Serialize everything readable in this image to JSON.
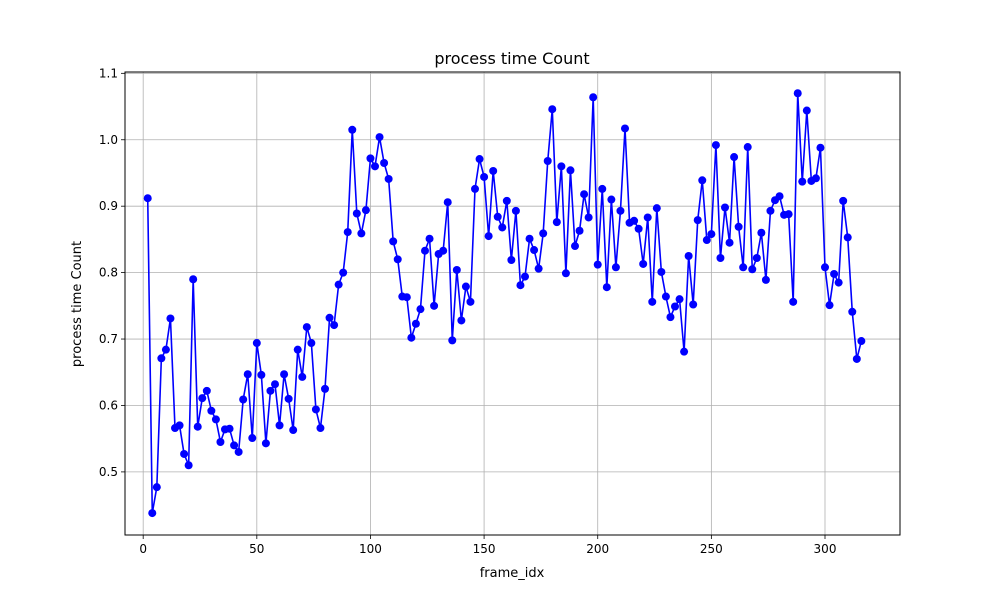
{
  "chart_data": {
    "type": "line",
    "title": "process time Count",
    "xlabel": "frame_idx",
    "ylabel": "process time Count",
    "xlim": [
      -8,
      333
    ],
    "ylim": [
      0.405,
      1.102
    ],
    "xticks": [
      0,
      50,
      100,
      150,
      200,
      250,
      300
    ],
    "yticks": [
      0.5,
      0.6,
      0.7,
      0.8,
      0.9,
      1.0,
      1.1
    ],
    "xtick_labels": [
      "0",
      "50",
      "100",
      "150",
      "200",
      "250",
      "300"
    ],
    "ytick_labels": [
      "0.5",
      "0.6",
      "0.7",
      "0.8",
      "0.9",
      "1.0",
      "1.1"
    ],
    "grid": true,
    "color": "#0000ff",
    "series": [
      {
        "x": [
          2,
          4,
          6,
          8,
          10,
          12,
          14,
          16,
          18,
          20,
          22,
          24,
          26,
          28,
          30,
          32,
          34,
          36,
          38,
          40,
          42,
          44,
          46,
          48,
          50,
          52,
          54,
          56,
          58,
          60,
          62,
          64,
          66,
          68,
          70,
          72,
          74,
          76,
          78,
          80,
          82,
          84,
          86,
          88,
          90,
          92,
          94,
          96,
          98,
          100,
          102,
          104,
          106,
          108,
          110,
          112,
          114,
          116,
          118,
          120,
          122,
          124,
          126,
          128,
          130,
          132,
          134,
          136,
          138,
          140,
          142,
          144,
          146,
          148,
          150,
          152,
          154,
          156,
          158,
          160,
          162,
          164,
          166,
          168,
          170,
          172,
          174,
          176,
          178,
          180,
          182,
          184,
          186,
          188,
          190,
          192,
          194,
          196,
          198,
          200,
          202,
          204,
          206,
          208,
          210,
          212,
          214,
          216,
          218,
          220,
          222,
          224,
          226,
          228,
          230,
          232,
          234,
          236,
          238,
          240,
          242,
          244,
          246,
          248,
          250,
          252,
          254,
          256,
          258,
          260,
          262,
          264,
          266,
          268,
          270,
          272,
          274,
          276,
          278,
          280,
          282,
          284,
          286,
          288,
          290,
          292,
          294,
          296,
          298,
          300,
          302,
          304,
          306,
          308,
          310,
          312,
          314,
          316
        ],
        "y": [
          0.912,
          0.438,
          0.477,
          0.671,
          0.684,
          0.731,
          0.566,
          0.57,
          0.527,
          0.51,
          0.79,
          0.568,
          0.611,
          0.622,
          0.592,
          0.579,
          0.545,
          0.564,
          0.565,
          0.54,
          0.53,
          0.609,
          0.647,
          0.551,
          0.694,
          0.646,
          0.543,
          0.622,
          0.632,
          0.57,
          0.647,
          0.61,
          0.563,
          0.684,
          0.643,
          0.718,
          0.694,
          0.594,
          0.566,
          0.625,
          0.732,
          0.721,
          0.782,
          0.8,
          0.861,
          1.015,
          0.889,
          0.859,
          0.894,
          0.972,
          0.96,
          1.004,
          0.965,
          0.941,
          0.847,
          0.82,
          0.764,
          0.763,
          0.702,
          0.723,
          0.745,
          0.833,
          0.851,
          0.75,
          0.828,
          0.833,
          0.906,
          0.698,
          0.804,
          0.728,
          0.779,
          0.756,
          0.926,
          0.971,
          0.944,
          0.855,
          0.953,
          0.884,
          0.868,
          0.908,
          0.819,
          0.893,
          0.781,
          0.794,
          0.851,
          0.834,
          0.806,
          0.859,
          0.968,
          1.046,
          0.876,
          0.96,
          0.799,
          0.954,
          0.84,
          0.863,
          0.918,
          0.883,
          1.064,
          0.812,
          0.926,
          0.778,
          0.91,
          0.808,
          0.893,
          1.017,
          0.875,
          0.878,
          0.866,
          0.813,
          0.883,
          0.756,
          0.897,
          0.801,
          0.764,
          0.733,
          0.749,
          0.76,
          0.681,
          0.825,
          0.752,
          0.879,
          0.939,
          0.849,
          0.858,
          0.992,
          0.822,
          0.898,
          0.845,
          0.974,
          0.869,
          0.808,
          0.989,
          0.805,
          0.822,
          0.86,
          0.789,
          0.893,
          0.909,
          0.915,
          0.887,
          0.888,
          0.756,
          1.07,
          0.937,
          1.044,
          0.938,
          0.942,
          0.988,
          0.808,
          0.751,
          0.798,
          0.785,
          0.908,
          0.853,
          0.741,
          0.67,
          0.697
        ]
      }
    ]
  }
}
